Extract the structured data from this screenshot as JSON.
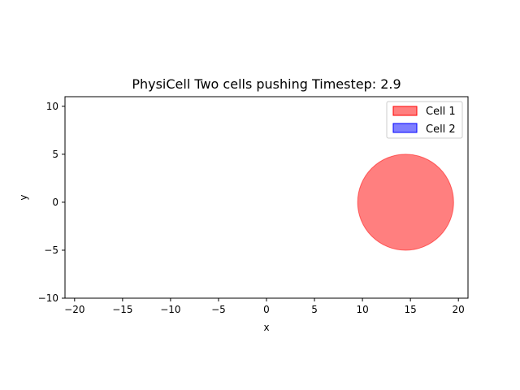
{
  "chart_data": {
    "type": "scatter",
    "title": "PhysiCell Two cells pushing Timestep: 2.9",
    "xlabel": "x",
    "ylabel": "y",
    "xlim": [
      -21,
      21
    ],
    "ylim": [
      -10,
      11
    ],
    "xticks": [
      -20,
      -15,
      -10,
      -5,
      0,
      5,
      10,
      15,
      20
    ],
    "yticks": [
      -10,
      -5,
      0,
      5,
      10
    ],
    "xtick_labels": [
      "−20",
      "−15",
      "−10",
      "−5",
      "0",
      "5",
      "10",
      "15",
      "20"
    ],
    "ytick_labels": [
      "−10",
      "−5",
      "0",
      "5",
      "10"
    ],
    "grid": false,
    "legend_position": "top-right",
    "series": [
      {
        "name": "Cell 1",
        "color": "#ff0000",
        "alpha": 0.5,
        "cells": [
          {
            "x": 14.5,
            "y": 0,
            "radius": 5
          }
        ]
      },
      {
        "name": "Cell 2",
        "color": "#0000ff",
        "alpha": 0.5,
        "cells": []
      }
    ]
  }
}
